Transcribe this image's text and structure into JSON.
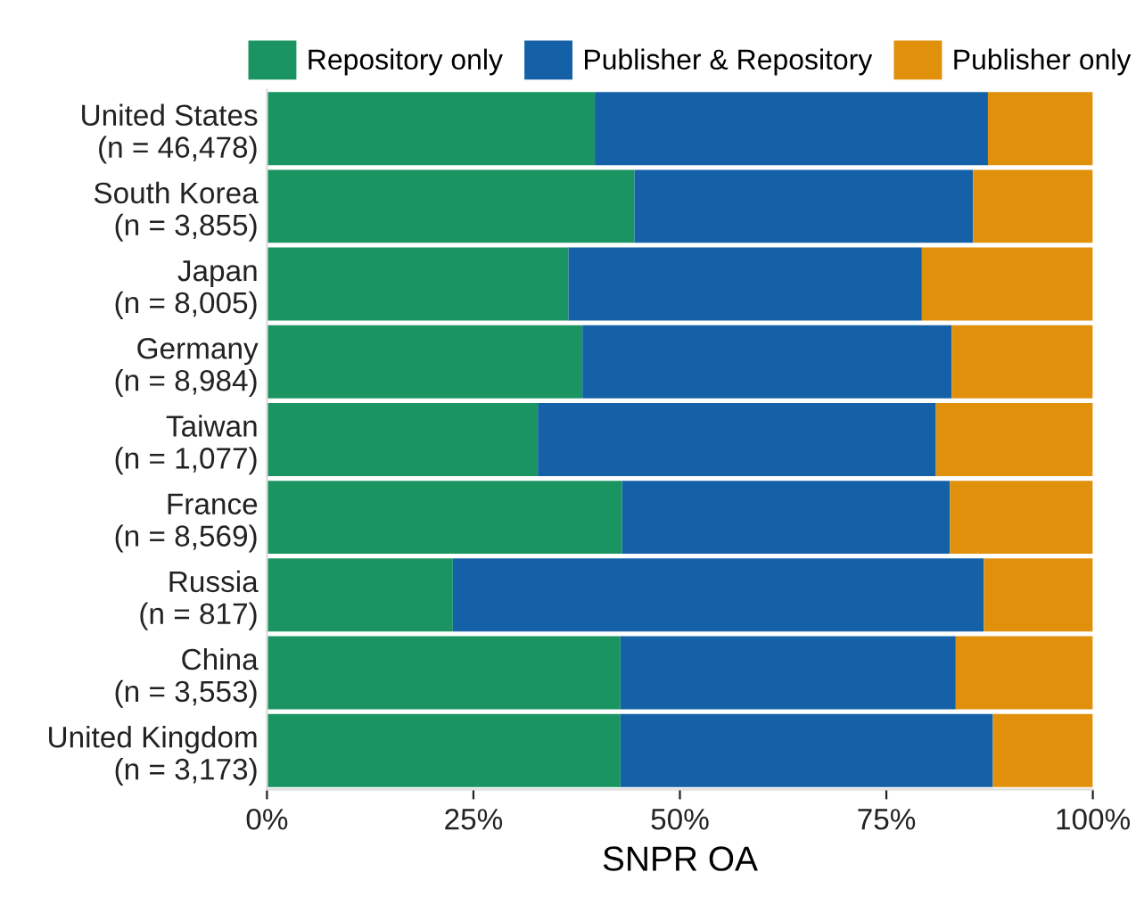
{
  "chart_data": {
    "type": "bar",
    "orientation": "horizontal",
    "stacked": true,
    "xlabel": "SNPR OA",
    "categories": [
      "United States\n(n = 46,478)",
      "South Korea\n(n = 3,855)",
      "Japan\n(n = 8,005)",
      "Germany\n(n = 8,984)",
      "Taiwan\n(n = 1,077)",
      "France\n(n = 8,569)",
      "Russia\n(n = 817)",
      "China\n(n = 3,553)",
      "United Kingdom\n(n = 3,173)"
    ],
    "series": [
      {
        "name": "Repository only",
        "color": "#1a9461",
        "values": [
          39.7,
          44.5,
          36.5,
          38.2,
          32.8,
          43.0,
          22.5,
          42.8,
          42.8
        ]
      },
      {
        "name": "Publisher & Repository",
        "color": "#1461a8",
        "values": [
          47.6,
          41.0,
          42.8,
          44.7,
          48.2,
          39.7,
          64.3,
          40.6,
          45.1
        ]
      },
      {
        "name": "Publisher only",
        "color": "#e0900b",
        "values": [
          12.7,
          14.5,
          20.7,
          17.1,
          19.0,
          17.3,
          13.2,
          16.6,
          12.1
        ]
      }
    ],
    "xlim": [
      0,
      100
    ],
    "xticks": [
      {
        "value": 0,
        "label": "0%"
      },
      {
        "value": 25,
        "label": "25%"
      },
      {
        "value": 50,
        "label": "50%"
      },
      {
        "value": 75,
        "label": "75%"
      },
      {
        "value": 100,
        "label": "100%"
      }
    ],
    "grid": false,
    "legend": "top"
  }
}
